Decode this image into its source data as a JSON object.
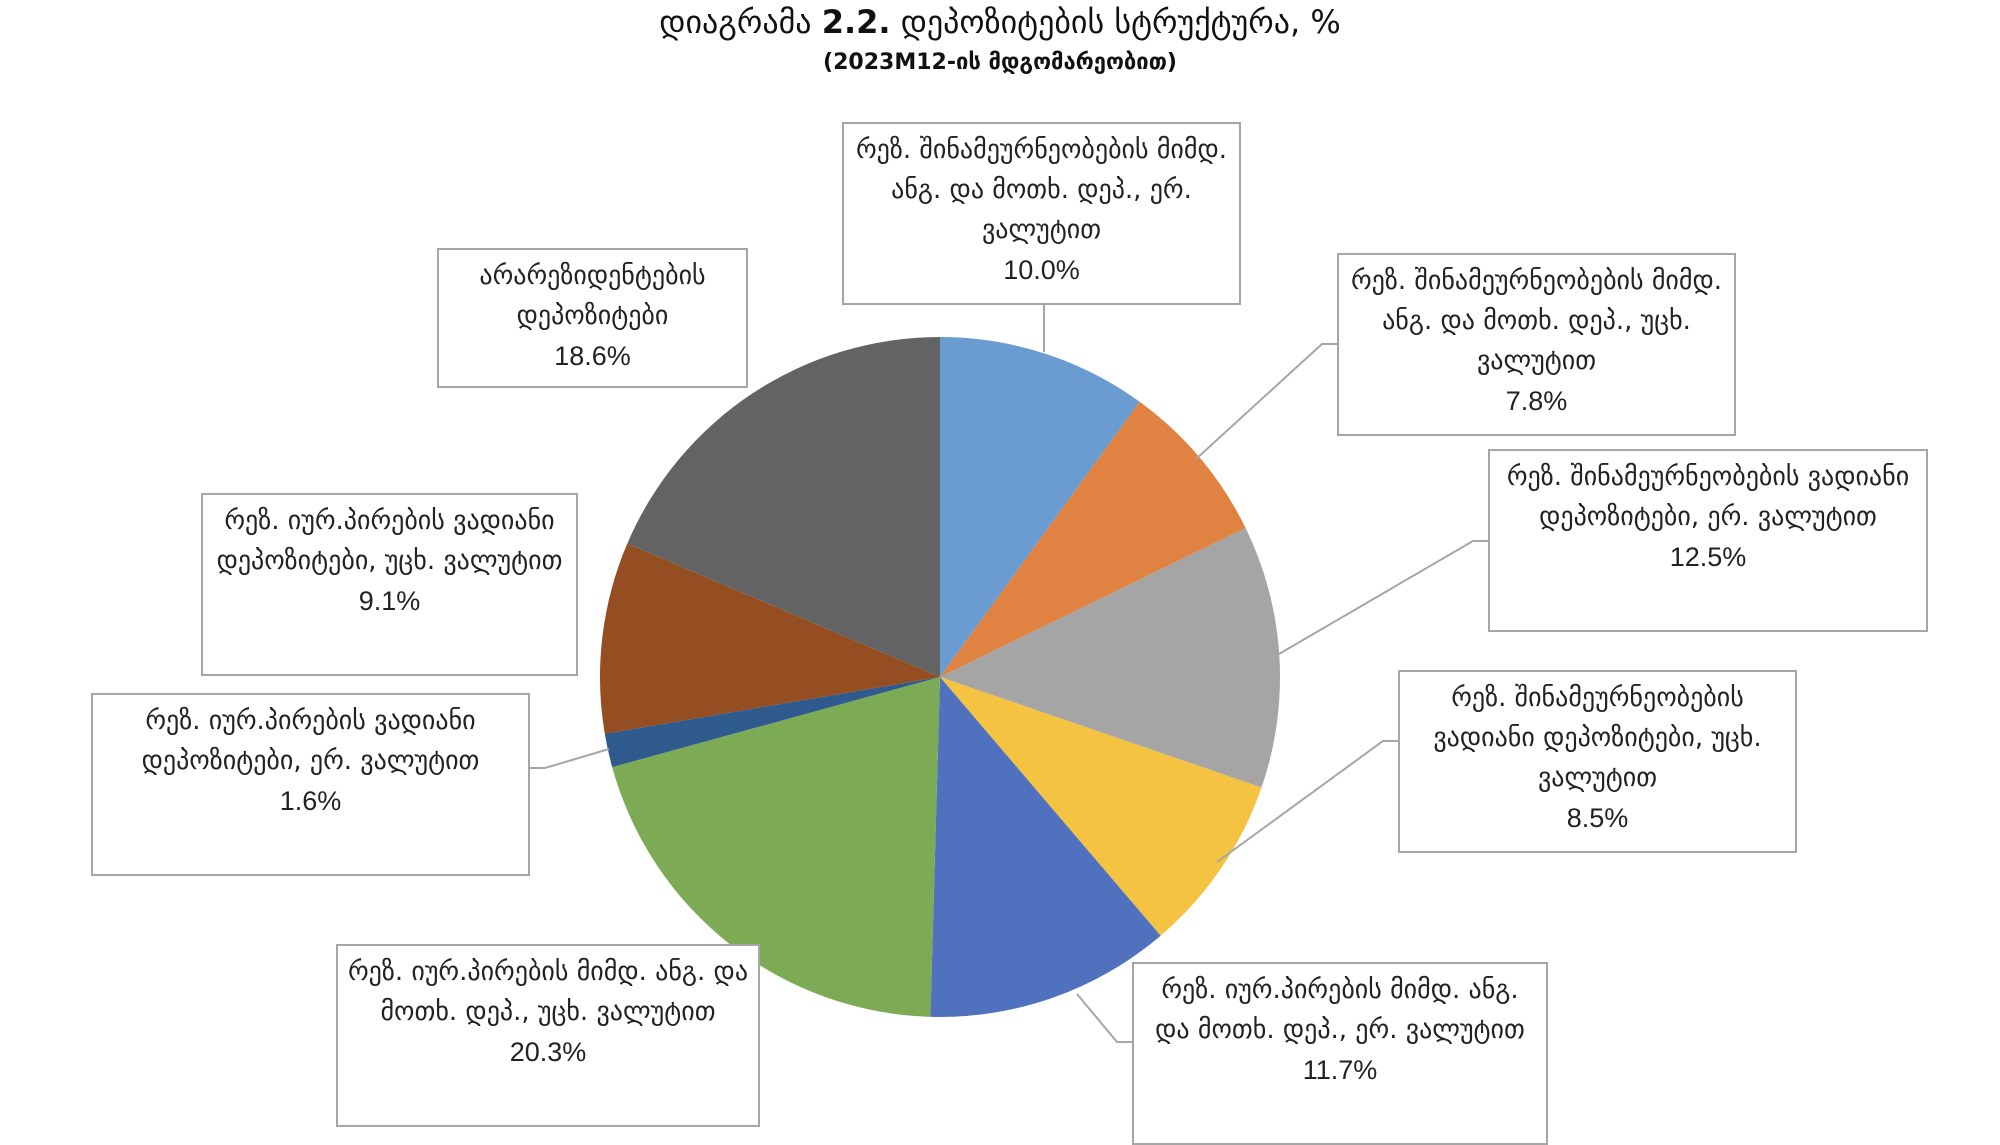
{
  "title": {
    "prefix": "დიაგრამა",
    "number": "2.2.",
    "text": "დეპოზიტების სტრუქტურა, %"
  },
  "subtitle": "(2023M12-ის მდგომარეობით)",
  "chart_data": {
    "type": "pie",
    "start_angle_deg": 0,
    "direction": "clockwise",
    "slices": [
      {
        "label": "რეზ. შინამეურნეობების მიმდ. ანგ. და მოთხ. დეპ., ერ. ვალუტით",
        "value": 10.0,
        "display": "10.0%",
        "color": "#6a9bd1"
      },
      {
        "label": "რეზ. შინამეურნეობების მიმდ. ანგ. და მოთხ. დეპ., უცხ. ვალუტით",
        "value": 7.8,
        "display": "7.8%",
        "color": "#e08342"
      },
      {
        "label": "რეზ. შინამეურნეობების ვადიანი დეპოზიტები, ერ. ვალუტით",
        "value": 12.5,
        "display": "12.5%",
        "color": "#a5a5a5"
      },
      {
        "label": "რეზ. შინამეურნეობების ვადიანი დეპოზიტები, უცხ. ვალუტით",
        "value": 8.5,
        "display": "8.5%",
        "color": "#f5c342"
      },
      {
        "label": "რეზ. იურ.პირების მიმდ. ანგ. და მოთხ. დეპ., ერ. ვალუტით",
        "value": 11.7,
        "display": "11.7%",
        "color": "#4f71be"
      },
      {
        "label": "რეზ. იურ.პირების მიმდ. ანგ. და მოთხ. დეპ., უცხ. ვალუტით",
        "value": 20.3,
        "display": "20.3%",
        "color": "#7dab55"
      },
      {
        "label": "რეზ. იურ.პირების ვადიანი დეპოზიტები, ერ. ვალუტით",
        "value": 1.6,
        "display": "1.6%",
        "color": "#2f5a8e"
      },
      {
        "label": "რეზ. იურ.პირების ვადიანი დეპოზიტები, უცხ. ვალუტით",
        "value": 9.1,
        "display": "9.1%",
        "color": "#954e22"
      },
      {
        "label": "არარეზიდენტების დეპოზიტები",
        "value": 18.6,
        "display": "18.6%",
        "color": "#636363"
      }
    ]
  }
}
